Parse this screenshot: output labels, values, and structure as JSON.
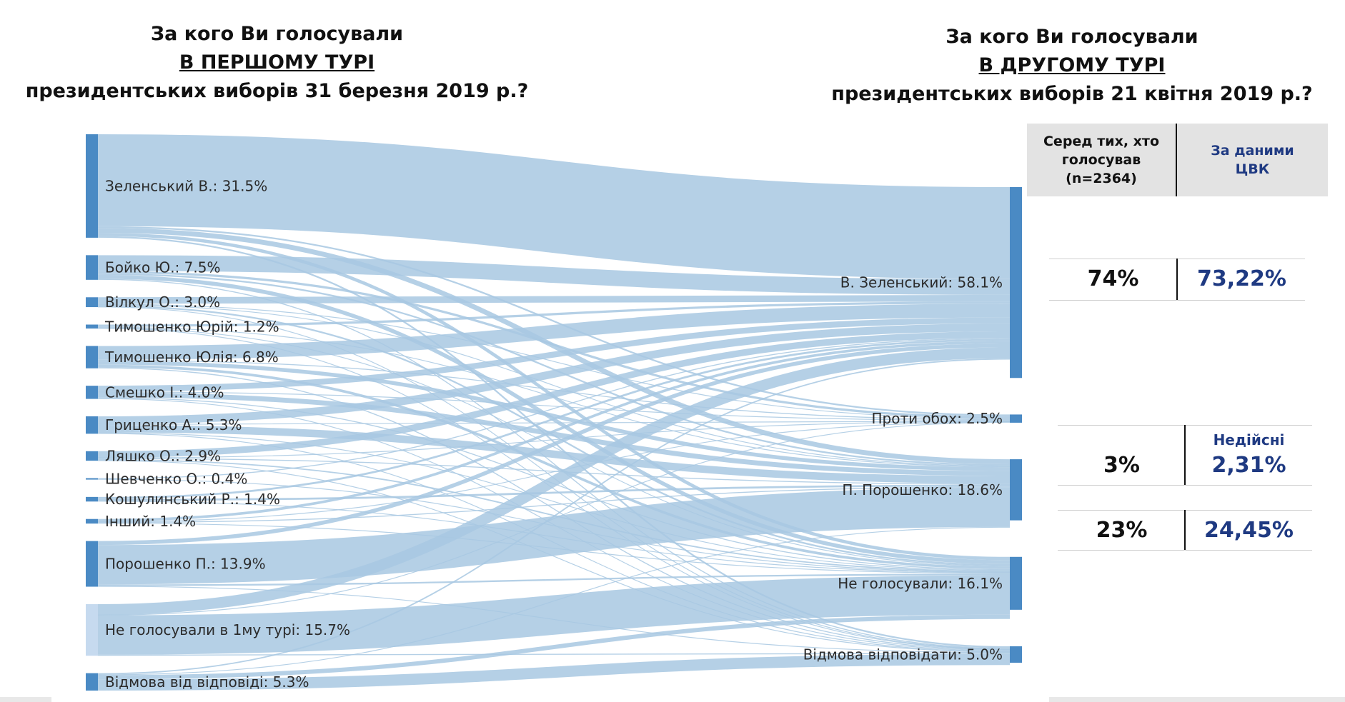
{
  "title_left": {
    "line1": "За кого Ви голосували",
    "line2": "В ПЕРШОМУ ТУРІ",
    "line3": "президентських виборів 31 березня 2019 р.?"
  },
  "title_right": {
    "line1": "За кого Ви голосували",
    "line2": "В ДРУГОМУ ТУРІ",
    "line3": "президентських виборів 21 квітня 2019 р.?"
  },
  "comparison": {
    "header_survey": "Серед тих, хто голосував (n=2364)",
    "header_cvk": "За даними ЦВК",
    "rows": [
      {
        "survey": "74%",
        "cvk": "73,22%"
      },
      {
        "survey": "3%",
        "cvk_label": "Недійсні",
        "cvk": "2,31%"
      },
      {
        "survey": "23%",
        "cvk": "24,45%"
      }
    ]
  },
  "colors": {
    "node": "#4a8ac4",
    "link": "#a8c8e2",
    "light_node": "#c6daef",
    "cvk_text": "#1f3a82"
  },
  "chart_data": {
    "type": "sankey",
    "left_nodes": [
      {
        "label": "Зеленський В.: 31.5%",
        "value": 31.5
      },
      {
        "label": "Бойко Ю.: 7.5%",
        "value": 7.5
      },
      {
        "label": "Вілкул О.: 3.0%",
        "value": 3.0
      },
      {
        "label": "Тимошенко Юрій: 1.2%",
        "value": 1.2
      },
      {
        "label": "Тимошенко Юлія: 6.8%",
        "value": 6.8
      },
      {
        "label": "Смешко І.: 4.0%",
        "value": 4.0
      },
      {
        "label": "Гриценко А.: 5.3%",
        "value": 5.3
      },
      {
        "label": "Ляшко О.: 2.9%",
        "value": 2.9
      },
      {
        "label": "Шевченко О.: 0.4%",
        "value": 0.4
      },
      {
        "label": "Кошулинський Р.: 1.4%",
        "value": 1.4
      },
      {
        "label": "Інший: 1.4%",
        "value": 1.4
      },
      {
        "label": "Порошенко П.: 13.9%",
        "value": 13.9
      },
      {
        "label": "Не голосували в 1му турі: 15.7%",
        "value": 15.7
      },
      {
        "label": "Відмова від відповіді: 5.3%",
        "value": 5.3
      }
    ],
    "right_nodes": [
      {
        "label": "В. Зеленський: 58.1%",
        "value": 58.1
      },
      {
        "label": "Проти обох: 2.5%",
        "value": 2.5
      },
      {
        "label": "П. Порошенко: 18.6%",
        "value": 18.6
      },
      {
        "label": "Не голосували: 16.1%",
        "value": 16.1
      },
      {
        "label": "Відмова відповідати: 5.0%",
        "value": 5.0
      }
    ],
    "links": [
      {
        "source": 0,
        "target": 0,
        "value": 28.0
      },
      {
        "source": 0,
        "target": 1,
        "value": 0.5
      },
      {
        "source": 0,
        "target": 2,
        "value": 1.5
      },
      {
        "source": 0,
        "target": 3,
        "value": 1.0
      },
      {
        "source": 0,
        "target": 4,
        "value": 0.5
      },
      {
        "source": 1,
        "target": 0,
        "value": 4.8
      },
      {
        "source": 1,
        "target": 1,
        "value": 0.7
      },
      {
        "source": 1,
        "target": 2,
        "value": 0.5
      },
      {
        "source": 1,
        "target": 3,
        "value": 1.2
      },
      {
        "source": 1,
        "target": 4,
        "value": 0.3
      },
      {
        "source": 2,
        "target": 0,
        "value": 2.0
      },
      {
        "source": 2,
        "target": 1,
        "value": 0.2
      },
      {
        "source": 2,
        "target": 2,
        "value": 0.2
      },
      {
        "source": 2,
        "target": 3,
        "value": 0.5
      },
      {
        "source": 2,
        "target": 4,
        "value": 0.1
      },
      {
        "source": 3,
        "target": 0,
        "value": 0.7
      },
      {
        "source": 3,
        "target": 2,
        "value": 0.2
      },
      {
        "source": 3,
        "target": 3,
        "value": 0.2
      },
      {
        "source": 3,
        "target": 4,
        "value": 0.1
      },
      {
        "source": 4,
        "target": 0,
        "value": 4.2
      },
      {
        "source": 4,
        "target": 1,
        "value": 0.3
      },
      {
        "source": 4,
        "target": 2,
        "value": 1.2
      },
      {
        "source": 4,
        "target": 3,
        "value": 0.8
      },
      {
        "source": 4,
        "target": 4,
        "value": 0.3
      },
      {
        "source": 5,
        "target": 0,
        "value": 1.8
      },
      {
        "source": 5,
        "target": 1,
        "value": 0.2
      },
      {
        "source": 5,
        "target": 2,
        "value": 1.5
      },
      {
        "source": 5,
        "target": 3,
        "value": 0.3
      },
      {
        "source": 5,
        "target": 4,
        "value": 0.2
      },
      {
        "source": 6,
        "target": 0,
        "value": 2.4
      },
      {
        "source": 6,
        "target": 1,
        "value": 0.2
      },
      {
        "source": 6,
        "target": 2,
        "value": 2.3
      },
      {
        "source": 6,
        "target": 3,
        "value": 0.2
      },
      {
        "source": 6,
        "target": 4,
        "value": 0.2
      },
      {
        "source": 7,
        "target": 0,
        "value": 2.0
      },
      {
        "source": 7,
        "target": 1,
        "value": 0.1
      },
      {
        "source": 7,
        "target": 2,
        "value": 0.3
      },
      {
        "source": 7,
        "target": 3,
        "value": 0.4
      },
      {
        "source": 7,
        "target": 4,
        "value": 0.1
      },
      {
        "source": 8,
        "target": 0,
        "value": 0.3
      },
      {
        "source": 8,
        "target": 3,
        "value": 0.1
      },
      {
        "source": 9,
        "target": 0,
        "value": 0.6
      },
      {
        "source": 9,
        "target": 2,
        "value": 0.6
      },
      {
        "source": 9,
        "target": 3,
        "value": 0.2
      },
      {
        "source": 10,
        "target": 0,
        "value": 0.8
      },
      {
        "source": 10,
        "target": 1,
        "value": 0.1
      },
      {
        "source": 10,
        "target": 2,
        "value": 0.3
      },
      {
        "source": 10,
        "target": 3,
        "value": 0.2
      },
      {
        "source": 11,
        "target": 0,
        "value": 1.2
      },
      {
        "source": 11,
        "target": 2,
        "value": 12.0
      },
      {
        "source": 11,
        "target": 3,
        "value": 0.5
      },
      {
        "source": 11,
        "target": 4,
        "value": 0.2
      },
      {
        "source": 12,
        "target": 0,
        "value": 3.3
      },
      {
        "source": 12,
        "target": 1,
        "value": 0.1
      },
      {
        "source": 12,
        "target": 3,
        "value": 12.0
      },
      {
        "source": 12,
        "target": 4,
        "value": 0.3
      },
      {
        "source": 13,
        "target": 0,
        "value": 0.4
      },
      {
        "source": 13,
        "target": 2,
        "value": 0.2
      },
      {
        "source": 13,
        "target": 3,
        "value": 1.3
      },
      {
        "source": 13,
        "target": 4,
        "value": 3.4
      }
    ]
  }
}
